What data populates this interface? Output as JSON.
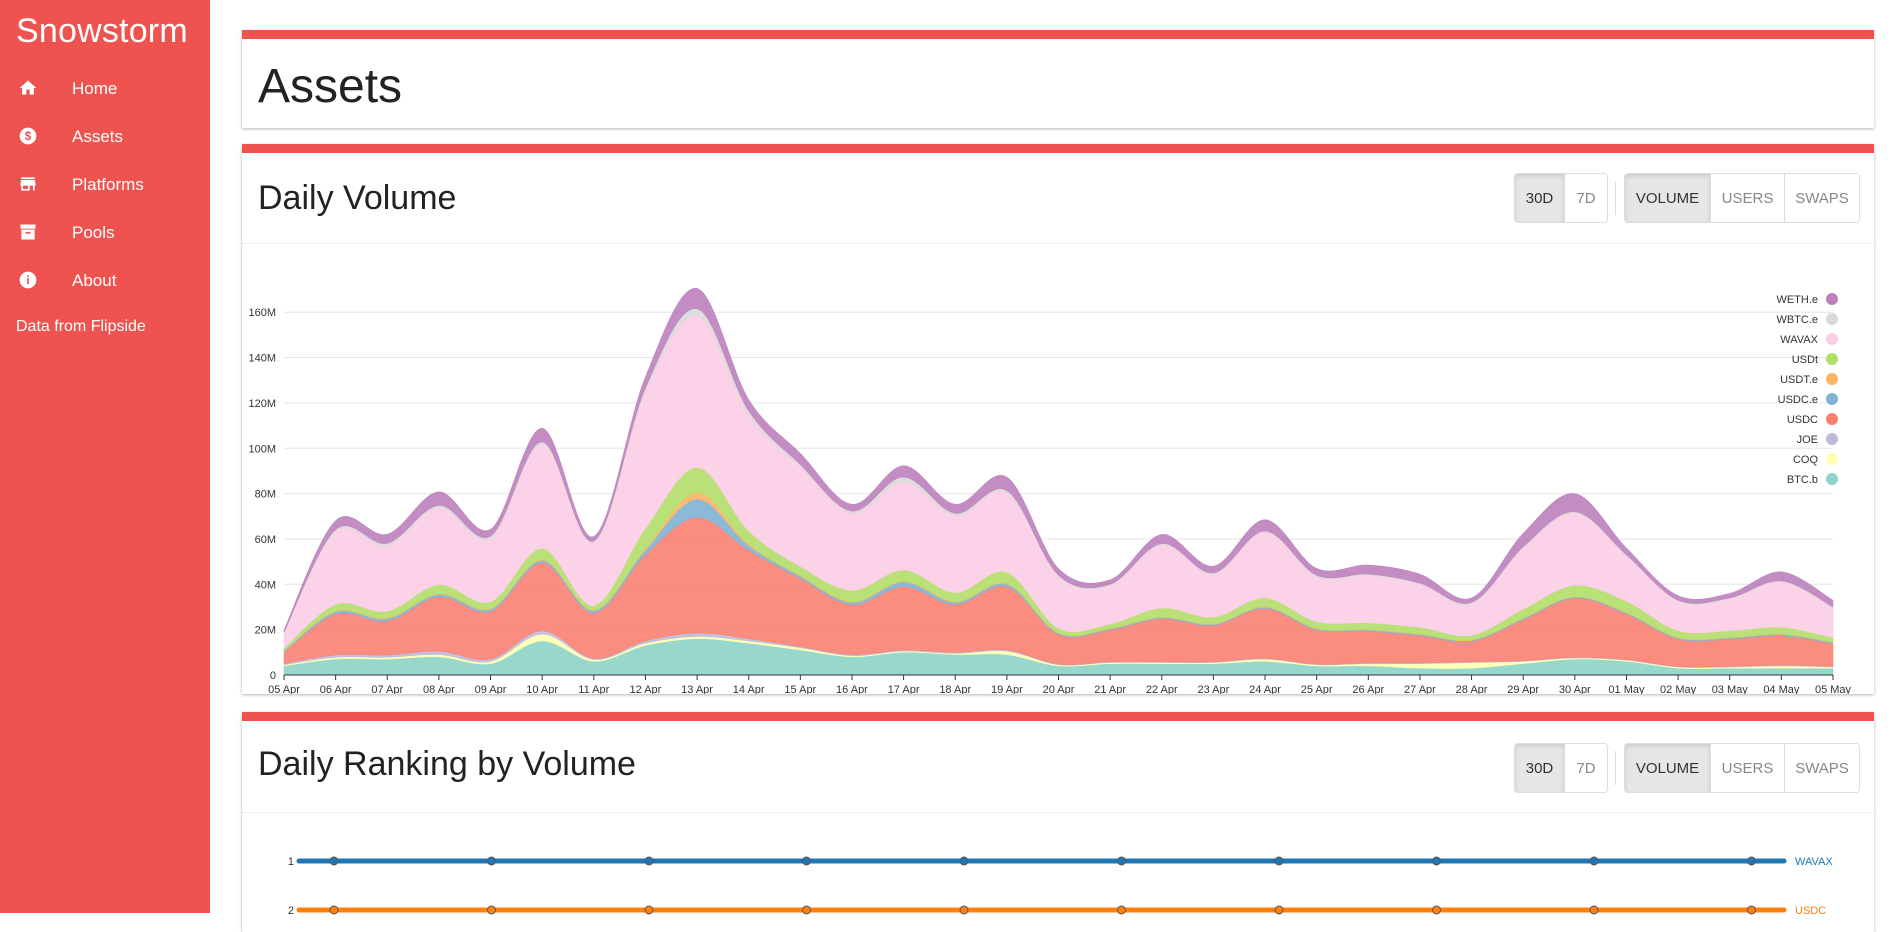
{
  "sidebar": {
    "brand": "Snowstorm",
    "items": [
      {
        "label": "Home",
        "icon": "home-icon"
      },
      {
        "label": "Assets",
        "icon": "dollar-icon"
      },
      {
        "label": "Platforms",
        "icon": "store-icon"
      },
      {
        "label": "Pools",
        "icon": "archive-icon"
      },
      {
        "label": "About",
        "icon": "info-icon"
      }
    ],
    "footer": "Data from Flipside"
  },
  "page": {
    "title": "Assets"
  },
  "volume_card": {
    "title": "Daily Volume",
    "range_buttons": [
      "30D",
      "7D"
    ],
    "range_active": "30D",
    "metric_buttons": [
      "VOLUME",
      "USERS",
      "SWAPS"
    ],
    "metric_active": "VOLUME"
  },
  "ranking_card": {
    "title": "Daily Ranking by Volume",
    "range_buttons": [
      "30D",
      "7D"
    ],
    "range_active": "30D",
    "metric_buttons": [
      "VOLUME",
      "USERS",
      "SWAPS"
    ],
    "metric_active": "VOLUME"
  },
  "colors": {
    "accent": "#ef5350"
  },
  "chart_data": [
    {
      "type": "area",
      "stacked": true,
      "smooth": true,
      "x": [
        "05 Apr",
        "06 Apr",
        "07 Apr",
        "08 Apr",
        "09 Apr",
        "10 Apr",
        "11 Apr",
        "12 Apr",
        "13 Apr",
        "14 Apr",
        "15 Apr",
        "16 Apr",
        "17 Apr",
        "18 Apr",
        "19 Apr",
        "20 Apr",
        "21 Apr",
        "22 Apr",
        "23 Apr",
        "24 Apr",
        "25 Apr",
        "26 Apr",
        "27 Apr",
        "28 Apr",
        "29 Apr",
        "30 Apr",
        "01 May",
        "02 May",
        "03 May",
        "04 May",
        "05 May"
      ],
      "yticks": [
        0,
        20,
        40,
        60,
        80,
        100,
        120,
        140,
        160
      ],
      "ytick_labels": [
        "0",
        "20M",
        "40M",
        "60M",
        "80M",
        "100M",
        "120M",
        "140M",
        "160M"
      ],
      "ylim": [
        0,
        172
      ],
      "grid": true,
      "legend_position": "top-right",
      "series": [
        {
          "name": "BTC.b",
          "color": "#8dd3c7",
          "values": [
            4,
            7,
            7,
            8,
            5,
            15,
            6,
            13,
            16,
            14,
            11,
            8,
            10,
            9,
            9,
            4,
            5,
            5,
            5,
            6,
            4,
            4,
            3,
            3,
            5,
            7,
            6,
            3,
            3,
            3,
            3
          ]
        },
        {
          "name": "COQ",
          "color": "#ffffb3",
          "values": [
            0.5,
            0.8,
            0.8,
            1,
            1,
            3,
            0.8,
            1,
            1,
            1,
            1,
            0.5,
            0.5,
            0.5,
            1.5,
            0.5,
            0.5,
            0.5,
            0.5,
            1,
            0.5,
            1,
            2,
            2.5,
            1,
            0.5,
            0.5,
            0.5,
            0.5,
            1,
            0.5
          ]
        },
        {
          "name": "JOE",
          "color": "#bebada",
          "values": [
            0.5,
            1,
            1,
            1.5,
            1,
            1.5,
            0.5,
            1,
            1.5,
            1,
            0.5,
            0.5,
            0.5,
            0.5,
            0.5,
            0.3,
            0.3,
            0.3,
            0.3,
            0.3,
            0.3,
            0.3,
            0.3,
            0.3,
            0.3,
            0.3,
            0.3,
            0.3,
            0.3,
            0.3,
            0.3
          ]
        },
        {
          "name": "USDC",
          "color": "#fb8072",
          "values": [
            5,
            18,
            15,
            24,
            21,
            30,
            20,
            38,
            51,
            39,
            30,
            22,
            28,
            21,
            28,
            13,
            14,
            19,
            16,
            22,
            15,
            14,
            12,
            9,
            18,
            26,
            20,
            12,
            12,
            13,
            10
          ]
        },
        {
          "name": "USDC.e",
          "color": "#80b1d3",
          "values": [
            0.5,
            1,
            1,
            1,
            1,
            1,
            1,
            2,
            8,
            2,
            1,
            1,
            2,
            1,
            1,
            0.5,
            0.5,
            0.5,
            0.5,
            0.5,
            0.5,
            0.5,
            0.5,
            0.5,
            0.5,
            0.5,
            0.5,
            0.5,
            0.5,
            0.5,
            0.5
          ]
        },
        {
          "name": "USDT.e",
          "color": "#fdb462",
          "values": [
            0.2,
            0.3,
            0.3,
            0.3,
            0.3,
            0.3,
            0.3,
            0.5,
            3,
            0.5,
            0.3,
            0.3,
            0.3,
            0.3,
            0.3,
            0.2,
            0.2,
            0.2,
            0.2,
            0.2,
            0.2,
            0.2,
            0.2,
            0.2,
            0.2,
            0.2,
            0.2,
            0.2,
            0.2,
            0.2,
            0.2
          ]
        },
        {
          "name": "USDt",
          "color": "#b3de69",
          "values": [
            1,
            3,
            3,
            4,
            3,
            5,
            2,
            9,
            11,
            6,
            4,
            5,
            5,
            4,
            5,
            2,
            2,
            4,
            3,
            4,
            3,
            3,
            3,
            2,
            4,
            5,
            5,
            3,
            3,
            3,
            2
          ]
        },
        {
          "name": "WAVAX",
          "color": "#fccde5",
          "values": [
            7,
            32,
            29,
            34,
            28,
            46,
            28,
            60,
            67,
            51,
            44,
            34,
            39,
            34,
            35,
            23,
            17,
            28,
            19,
            29,
            20,
            21,
            19,
            14,
            27,
            32,
            20,
            13,
            14,
            20,
            13
          ]
        },
        {
          "name": "WBTC.e",
          "color": "#d9d9d9",
          "values": [
            0.2,
            1,
            1,
            1,
            1,
            1,
            0.5,
            2,
            3,
            2,
            1,
            1,
            2,
            1,
            1,
            0.5,
            0.5,
            0.5,
            0.5,
            0.5,
            0.5,
            0.5,
            0.5,
            0.5,
            0.5,
            0.5,
            0.5,
            0.5,
            0.5,
            0.5,
            0.5
          ]
        },
        {
          "name": "WETH.e",
          "color": "#bc80bd",
          "values": [
            1,
            4,
            4,
            6,
            3,
            6,
            2,
            5,
            9,
            5,
            5,
            3,
            5,
            4,
            6,
            3,
            2,
            4,
            3,
            5,
            3,
            4,
            4,
            2,
            6,
            8,
            3,
            2,
            2,
            4,
            3
          ]
        }
      ]
    },
    {
      "type": "line",
      "yticks": [
        1,
        2
      ],
      "series": [
        {
          "name": "WAVAX",
          "color": "#1f77b4",
          "values": [
            1,
            1,
            1,
            1,
            1,
            1,
            1,
            1,
            1,
            1
          ]
        },
        {
          "name": "USDC",
          "color": "#ff7f0e",
          "values": [
            2,
            2,
            2,
            2,
            2,
            2,
            2,
            2,
            2,
            2
          ]
        }
      ]
    }
  ]
}
